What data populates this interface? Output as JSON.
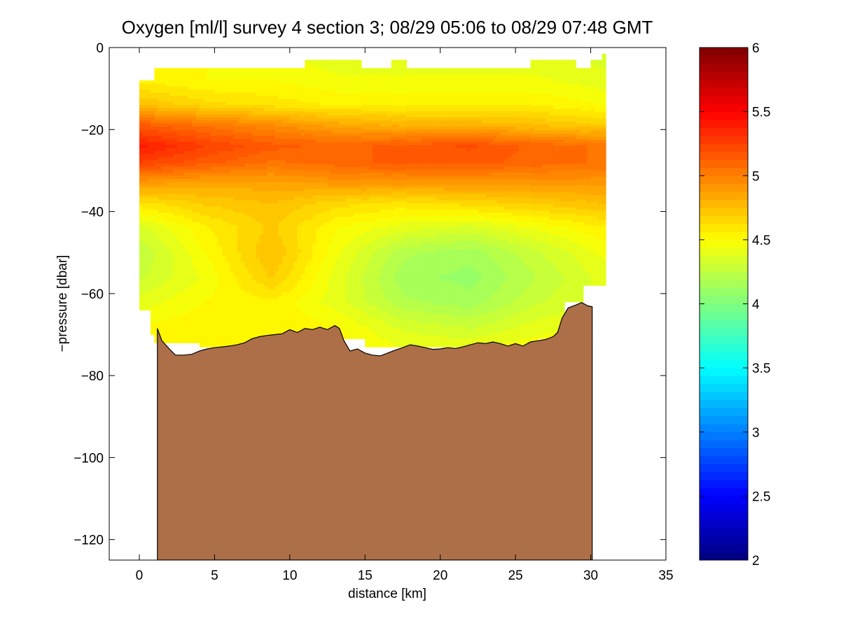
{
  "chart_data": {
    "type": "heatmap",
    "title": "Oxygen [ml/l] survey 4 section 3; 08/29 05:06 to 08/29 07:48 GMT",
    "xlabel": "distance [km]",
    "ylabel": "−pressure [dbar]",
    "xlim": [
      -2,
      35
    ],
    "ylim": [
      -125,
      0
    ],
    "xticks": [
      0,
      5,
      10,
      15,
      20,
      25,
      30,
      35
    ],
    "yticks": [
      0,
      -20,
      -40,
      -60,
      -80,
      -100,
      -120
    ],
    "xtick_labels": [
      "0",
      "5",
      "10",
      "15",
      "20",
      "25",
      "30",
      "35"
    ],
    "ytick_labels": [
      "0",
      "−20",
      "−40",
      "−60",
      "−80",
      "−100",
      "−120"
    ],
    "grid": false,
    "colormap": "jet",
    "colorbar": {
      "range": [
        2,
        6
      ],
      "ticks": [
        2,
        2.5,
        3,
        3.5,
        4,
        4.5,
        5,
        5.5,
        6
      ],
      "tick_labels": [
        "2",
        "2.5",
        "3",
        "3.5",
        "4",
        "4.5",
        "5",
        "5.5",
        "6"
      ]
    },
    "data_top": {
      "x": [
        0,
        0.8,
        1.0,
        7.4,
        11.1,
        14.8,
        16.7,
        17.7,
        26.0,
        28.9,
        29.9,
        30.8
      ],
      "y": [
        -8,
        -8,
        -5,
        -5,
        -3,
        -5,
        -3,
        -5,
        -3,
        -5,
        -3,
        -1.5
      ]
    },
    "data_bottom": {
      "x": [
        0,
        0.8,
        0.8,
        1.0,
        1.0,
        1.2,
        4.0,
        4.0,
        13.5,
        13.5,
        15.0,
        25.8,
        26.5,
        28.3,
        28.3,
        29.6,
        29.6,
        30.7
      ],
      "y": [
        -64,
        -64,
        -70,
        -70,
        -72,
        -72,
        -72,
        -73,
        -73,
        -71,
        -73,
        -73,
        -71,
        -71,
        -62,
        -62,
        -58,
        -58
      ]
    },
    "oxygen_rows": [
      {
        "y": -2,
        "values": [
          4.5,
          4.5,
          4.45,
          4.4,
          4.4,
          4.4,
          4.4,
          4.35
        ]
      },
      {
        "y": -8,
        "values": [
          4.55,
          4.5,
          4.5,
          4.45,
          4.45,
          4.45,
          4.45,
          4.4
        ]
      },
      {
        "y": -14,
        "values": [
          4.75,
          4.65,
          4.6,
          4.55,
          4.55,
          4.55,
          4.55,
          4.5
        ]
      },
      {
        "y": -19,
        "values": [
          5.15,
          5.05,
          4.95,
          4.85,
          4.8,
          4.8,
          4.75,
          4.7
        ]
      },
      {
        "y": -24,
        "values": [
          5.4,
          5.25,
          5.15,
          5.1,
          5.15,
          5.2,
          5.1,
          5.05
        ]
      },
      {
        "y": -28,
        "values": [
          5.25,
          5.15,
          5.05,
          5.1,
          5.15,
          5.15,
          5.1,
          5.05
        ]
      },
      {
        "y": -33,
        "values": [
          4.9,
          4.85,
          4.85,
          4.9,
          4.9,
          4.9,
          4.9,
          4.9
        ]
      },
      {
        "y": -38,
        "values": [
          4.6,
          4.7,
          4.75,
          4.65,
          4.6,
          4.65,
          4.7,
          4.75
        ]
      },
      {
        "y": -44,
        "values": [
          4.35,
          4.55,
          4.7,
          4.5,
          4.4,
          4.35,
          4.45,
          4.55
        ]
      },
      {
        "y": -50,
        "values": [
          4.25,
          4.5,
          4.75,
          4.45,
          4.2,
          4.15,
          4.3,
          4.45
        ]
      },
      {
        "y": -56,
        "values": [
          4.3,
          4.45,
          4.7,
          4.4,
          4.15,
          4.1,
          4.25,
          4.4
        ]
      },
      {
        "y": -62,
        "values": [
          4.4,
          4.5,
          4.55,
          4.4,
          4.2,
          4.15,
          4.3,
          4.4
        ]
      },
      {
        "y": -68,
        "values": [
          4.5,
          4.55,
          4.55,
          4.5,
          4.35,
          4.3,
          4.4,
          4.45
        ]
      },
      {
        "y": -74,
        "values": [
          4.55,
          4.55,
          4.55,
          4.55,
          4.45,
          4.45,
          4.5,
          4.5
        ]
      }
    ],
    "oxygen_row_x": [
      0,
      4.4,
      8.8,
      13.2,
      17.6,
      22.0,
      26.4,
      30.8
    ],
    "seafloor": {
      "color": "#ad6f48",
      "x": [
        1.2,
        1.5,
        2.0,
        2.4,
        3.0,
        3.5,
        4.0,
        4.5,
        5.0,
        5.5,
        6.0,
        6.5,
        7.0,
        7.5,
        8.0,
        8.5,
        9.0,
        9.5,
        10.0,
        10.5,
        11.0,
        11.5,
        12.0,
        12.5,
        13.0,
        13.3,
        13.6,
        14.0,
        14.5,
        15.0,
        15.5,
        16.0,
        16.5,
        17.0,
        17.5,
        18.0,
        18.5,
        19.0,
        19.5,
        20.0,
        20.5,
        21.0,
        21.5,
        22.0,
        22.5,
        23.0,
        23.5,
        24.0,
        24.5,
        25.0,
        25.5,
        26.0,
        26.5,
        27.0,
        27.5,
        27.8,
        28.1,
        28.5,
        29.0,
        29.4,
        29.8,
        30.1
      ],
      "y": [
        -68.5,
        -71.5,
        -73.5,
        -75,
        -75,
        -74.8,
        -74,
        -73.5,
        -73.2,
        -73,
        -72.8,
        -72.5,
        -72,
        -71,
        -70.5,
        -70.2,
        -70,
        -69.8,
        -68.8,
        -69.5,
        -68.5,
        -68.8,
        -68.2,
        -68.8,
        -67.8,
        -68.5,
        -71.5,
        -74,
        -73.5,
        -74.5,
        -75,
        -75.2,
        -74.5,
        -73.8,
        -73.2,
        -72.5,
        -72.8,
        -73.2,
        -73.6,
        -73.5,
        -73.2,
        -73.4,
        -73,
        -72.5,
        -72,
        -72.2,
        -71.8,
        -72.2,
        -72.8,
        -72.2,
        -72.8,
        -71.8,
        -71.5,
        -71.2,
        -70.5,
        -69.5,
        -66,
        -63.5,
        -62.8,
        -62.2,
        -63,
        -63.2
      ]
    }
  }
}
